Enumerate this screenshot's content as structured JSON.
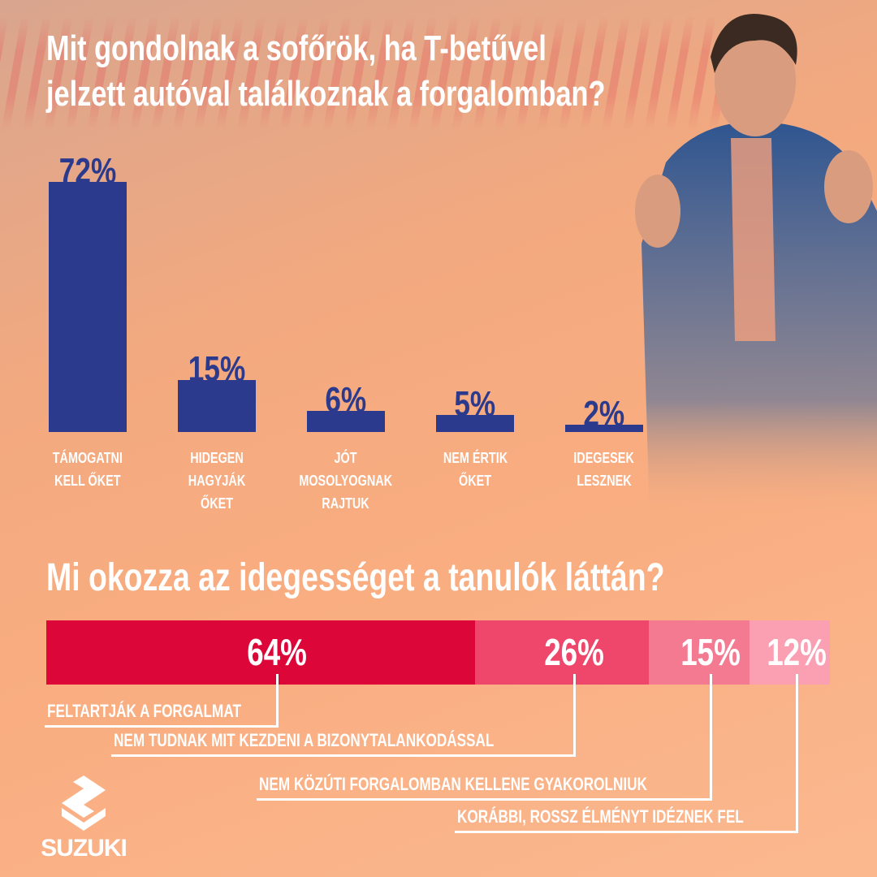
{
  "title1": "Mit gondolnak a sofőrök, ha T-betűvel",
  "title1b": "jelzett autóval találkoznak a forgalomban?",
  "title2": "Mi okozza az idegességet a tanulók láttán?",
  "brand": "SUZUKI",
  "colors": {
    "bar": "#2b3a8c",
    "seg": [
      "#dc0639",
      "#ef466b",
      "#f47a92",
      "#fb9fb3"
    ]
  },
  "chart_data": [
    {
      "type": "bar",
      "title": "Mit gondolnak a sofőrök, ha T-betűvel jelzett autóval találkoznak a forgalomban?",
      "categories": [
        "TÁMOGATNI KELL ŐKET",
        "HIDEGEN HAGYJÁK ŐKET",
        "JÓT MOSOLYOGNAK RAJTUK",
        "NEM ÉRTIK ŐKET",
        "IDEGESEK LESZNEK"
      ],
      "category_lines": [
        [
          "TÁMOGATNI",
          "KELL ŐKET"
        ],
        [
          "HIDEGEN",
          "HAGYJÁK",
          "ŐKET"
        ],
        [
          "JÓT",
          "MOSOLYOGNAK",
          "RAJTUK"
        ],
        [
          "NEM ÉRTIK",
          "ŐKET"
        ],
        [
          "IDEGESEK",
          "LESZNEK"
        ]
      ],
      "values": [
        72,
        15,
        6,
        5,
        2
      ],
      "labels": [
        "72%",
        "15%",
        "6%",
        "5%",
        "2%"
      ],
      "ylim": [
        0,
        72
      ],
      "grid": false
    },
    {
      "type": "bar",
      "orientation": "horizontal-stacked",
      "title": "Mi okozza az idegességet a tanulók láttán?",
      "categories": [
        "FELTARTJÁK A FORGALMAT",
        "NEM TUDNAK MIT KEZDENI A BIZONYTALANKODÁSSAL",
        "NEM KÖZÚTI FORGALOMBAN KELLENE GYAKOROLNIUK",
        "KORÁBBI, ROSSZ ÉLMÉNYT IDÉZNEK FEL"
      ],
      "values": [
        64,
        26,
        15,
        12
      ],
      "labels": [
        "64%",
        "26%",
        "15%",
        "12%"
      ],
      "grid": false
    }
  ]
}
